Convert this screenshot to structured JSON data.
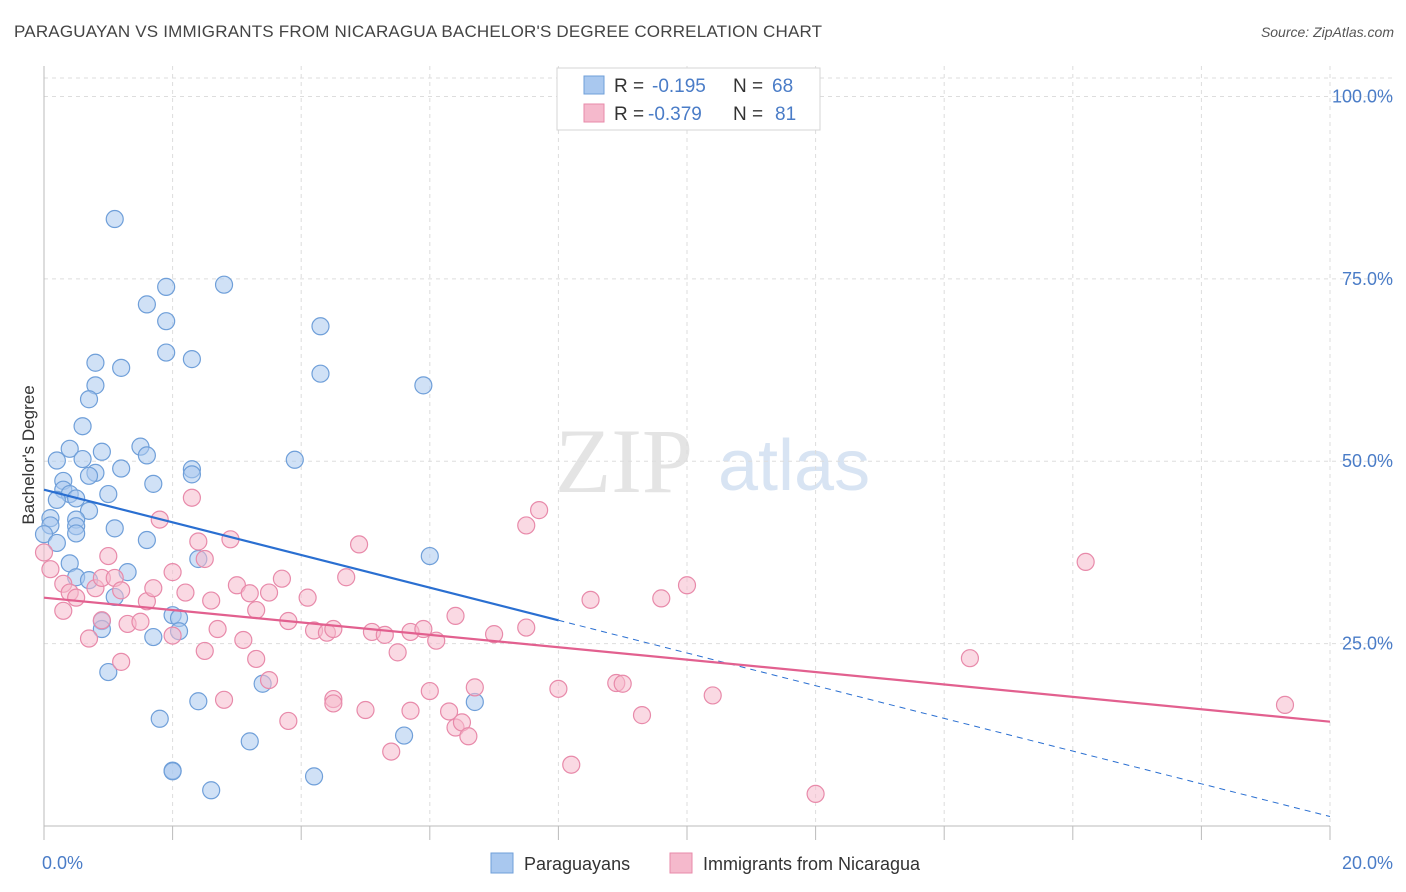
{
  "title": "PARAGUAYAN VS IMMIGRANTS FROM NICARAGUA BACHELOR'S DEGREE CORRELATION CHART",
  "source": "Source: ZipAtlas.com",
  "watermark": {
    "zip": "ZIP",
    "atlas": "atlas"
  },
  "colors": {
    "blue_fill": "#a9c8ef",
    "blue_stroke": "#6f9fd9",
    "blue_line": "#2a6fd1",
    "pink_fill": "#f5b9cc",
    "pink_stroke": "#e88aaa",
    "pink_line": "#e2608f",
    "grid": "#dddddd",
    "tick_text": "#4a7cc7"
  },
  "legend_top": [
    {
      "r_label": "R =",
      "r_value": "-0.195",
      "n_label": "N =",
      "n_value": "68",
      "color": "blue"
    },
    {
      "r_label": "R =",
      "r_value": "-0.379",
      "n_label": "N =",
      "n_value": "81",
      "color": "pink"
    }
  ],
  "chart_data": {
    "type": "scatter",
    "title": "PARAGUAYAN VS IMMIGRANTS FROM NICARAGUA BACHELOR'S DEGREE CORRELATION CHART",
    "xlabel": "",
    "ylabel": "Bachelor's Degree",
    "xlim": [
      0,
      20
    ],
    "ylim": [
      0,
      105
    ],
    "x_ticks": [
      {
        "value": 0,
        "label": "0.0%"
      },
      {
        "value": 20,
        "label": "20.0%"
      }
    ],
    "y_ticks": [
      {
        "value": 25,
        "label": "25.0%"
      },
      {
        "value": 50,
        "label": "50.0%"
      },
      {
        "value": 75,
        "label": "75.0%"
      },
      {
        "value": 100,
        "label": "100.0%"
      }
    ],
    "x_gridlines": [
      2,
      4,
      6,
      8,
      10,
      12,
      14,
      16,
      18,
      20
    ],
    "y_gridlines": [
      25,
      50,
      75,
      100
    ],
    "grid": true,
    "legend_position": "bottom",
    "series": [
      {
        "name": "Paraguayans",
        "color": "blue",
        "trend": {
          "x0": 0,
          "y0": 46.1,
          "x1": 8.0,
          "y1": 28.2,
          "dash_x1": 20,
          "dash_y1": 1.3
        },
        "points": [
          [
            1.1,
            83.2
          ],
          [
            1.9,
            73.9
          ],
          [
            2.8,
            74.2
          ],
          [
            1.6,
            71.5
          ],
          [
            1.9,
            69.2
          ],
          [
            4.3,
            68.5
          ],
          [
            1.9,
            64.9
          ],
          [
            2.3,
            64.0
          ],
          [
            0.8,
            63.5
          ],
          [
            1.2,
            62.8
          ],
          [
            4.3,
            62.0
          ],
          [
            0.8,
            60.4
          ],
          [
            5.9,
            60.4
          ],
          [
            0.7,
            58.5
          ],
          [
            0.6,
            54.8
          ],
          [
            0.4,
            51.7
          ],
          [
            0.9,
            51.3
          ],
          [
            1.5,
            52.0
          ],
          [
            0.2,
            50.1
          ],
          [
            0.6,
            50.3
          ],
          [
            1.6,
            50.8
          ],
          [
            3.9,
            50.2
          ],
          [
            0.8,
            48.4
          ],
          [
            1.2,
            49.0
          ],
          [
            2.3,
            48.9
          ],
          [
            0.7,
            48.0
          ],
          [
            2.3,
            48.2
          ],
          [
            0.3,
            47.3
          ],
          [
            1.7,
            46.9
          ],
          [
            0.3,
            46.1
          ],
          [
            0.4,
            45.5
          ],
          [
            0.5,
            44.9
          ],
          [
            1.0,
            45.5
          ],
          [
            0.2,
            44.7
          ],
          [
            0.7,
            43.2
          ],
          [
            0.1,
            42.2
          ],
          [
            0.5,
            42.0
          ],
          [
            0.1,
            41.2
          ],
          [
            0.5,
            41.1
          ],
          [
            1.1,
            40.8
          ],
          [
            0.5,
            40.1
          ],
          [
            0.0,
            40.0
          ],
          [
            1.6,
            39.2
          ],
          [
            0.2,
            38.8
          ],
          [
            6.0,
            37.0
          ],
          [
            2.4,
            36.6
          ],
          [
            0.4,
            36.0
          ],
          [
            1.3,
            34.8
          ],
          [
            0.5,
            34.1
          ],
          [
            0.7,
            33.7
          ],
          [
            1.1,
            31.4
          ],
          [
            2.0,
            28.9
          ],
          [
            2.1,
            28.5
          ],
          [
            0.9,
            28.1
          ],
          [
            0.9,
            27.0
          ],
          [
            2.1,
            26.7
          ],
          [
            1.7,
            25.9
          ],
          [
            1.0,
            21.1
          ],
          [
            3.4,
            19.5
          ],
          [
            2.4,
            17.1
          ],
          [
            6.7,
            17.0
          ],
          [
            1.8,
            14.7
          ],
          [
            5.6,
            12.4
          ],
          [
            3.2,
            11.6
          ],
          [
            2.0,
            7.6
          ],
          [
            2.0,
            7.5
          ],
          [
            4.2,
            6.8
          ],
          [
            2.6,
            4.9
          ]
        ]
      },
      {
        "name": "Immigrants from Nicaragua",
        "color": "pink",
        "trend": {
          "x0": 0,
          "y0": 31.3,
          "x1": 20,
          "y1": 14.3
        },
        "points": [
          [
            0.0,
            37.5
          ],
          [
            0.1,
            35.2
          ],
          [
            0.3,
            33.2
          ],
          [
            0.4,
            32.0
          ],
          [
            0.5,
            31.3
          ],
          [
            0.8,
            32.6
          ],
          [
            0.9,
            34.0
          ],
          [
            1.0,
            37.0
          ],
          [
            1.1,
            34.0
          ],
          [
            1.2,
            32.3
          ],
          [
            0.9,
            28.2
          ],
          [
            0.7,
            25.7
          ],
          [
            1.3,
            27.7
          ],
          [
            1.5,
            28.0
          ],
          [
            1.6,
            30.8
          ],
          [
            1.7,
            32.6
          ],
          [
            1.8,
            42.0
          ],
          [
            2.0,
            34.8
          ],
          [
            2.2,
            32.0
          ],
          [
            2.3,
            45.0
          ],
          [
            2.4,
            39.0
          ],
          [
            2.5,
            36.6
          ],
          [
            2.6,
            30.9
          ],
          [
            2.7,
            27.0
          ],
          [
            2.9,
            39.3
          ],
          [
            3.0,
            33.0
          ],
          [
            3.2,
            31.9
          ],
          [
            3.3,
            29.6
          ],
          [
            3.5,
            32.0
          ],
          [
            3.7,
            33.9
          ],
          [
            3.8,
            28.1
          ],
          [
            4.1,
            31.3
          ],
          [
            4.2,
            26.8
          ],
          [
            4.4,
            26.5
          ],
          [
            4.5,
            27.0
          ],
          [
            4.7,
            34.1
          ],
          [
            4.9,
            38.6
          ],
          [
            5.1,
            26.6
          ],
          [
            5.3,
            26.2
          ],
          [
            5.5,
            23.8
          ],
          [
            5.7,
            26.6
          ],
          [
            5.9,
            27.0
          ],
          [
            6.1,
            25.4
          ],
          [
            6.4,
            28.8
          ],
          [
            7.0,
            26.3
          ],
          [
            7.5,
            27.2
          ],
          [
            7.5,
            41.2
          ],
          [
            7.7,
            43.3
          ],
          [
            8.5,
            31.0
          ],
          [
            9.6,
            31.2
          ],
          [
            10.0,
            33.0
          ],
          [
            2.0,
            26.1
          ],
          [
            2.5,
            24.0
          ],
          [
            3.1,
            25.5
          ],
          [
            3.3,
            22.9
          ],
          [
            3.5,
            20.0
          ],
          [
            1.2,
            22.5
          ],
          [
            2.8,
            17.3
          ],
          [
            3.8,
            14.4
          ],
          [
            4.5,
            17.4
          ],
          [
            4.5,
            16.8
          ],
          [
            5.0,
            15.9
          ],
          [
            5.4,
            10.2
          ],
          [
            5.7,
            15.8
          ],
          [
            6.0,
            18.5
          ],
          [
            6.3,
            15.7
          ],
          [
            6.4,
            13.5
          ],
          [
            6.5,
            14.2
          ],
          [
            6.6,
            12.3
          ],
          [
            6.7,
            19.0
          ],
          [
            8.0,
            18.8
          ],
          [
            8.2,
            8.4
          ],
          [
            8.9,
            19.6
          ],
          [
            9.0,
            19.5
          ],
          [
            9.3,
            15.2
          ],
          [
            10.4,
            17.9
          ],
          [
            12.0,
            4.4
          ],
          [
            14.4,
            23.0
          ],
          [
            16.2,
            36.2
          ],
          [
            19.3,
            16.6
          ],
          [
            0.3,
            29.5
          ]
        ]
      }
    ]
  }
}
